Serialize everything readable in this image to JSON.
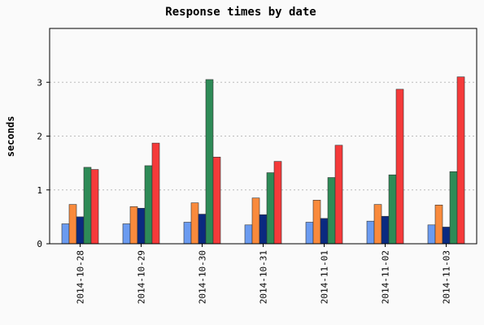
{
  "chart_data": {
    "type": "bar",
    "title": "Response times by date",
    "xlabel": "",
    "ylabel": "seconds",
    "categories": [
      "2014-10-28",
      "2014-10-29",
      "2014-10-30",
      "2014-10-31",
      "2014-11-01",
      "2014-11-02",
      "2014-11-03"
    ],
    "ylim": [
      0,
      4
    ],
    "yticks": [
      0,
      1,
      2,
      3
    ],
    "grid": true,
    "legend": "none",
    "series": [
      {
        "color": "#6b9bf0",
        "values": [
          0.37,
          0.37,
          0.4,
          0.35,
          0.4,
          0.42,
          0.35
        ]
      },
      {
        "color": "#f98a3c",
        "values": [
          0.73,
          0.69,
          0.76,
          0.85,
          0.81,
          0.73,
          0.72
        ]
      },
      {
        "color": "#0a2a80",
        "values": [
          0.5,
          0.66,
          0.55,
          0.54,
          0.47,
          0.51,
          0.31
        ]
      },
      {
        "color": "#2e8b57",
        "values": [
          1.42,
          1.45,
          3.05,
          1.32,
          1.23,
          1.28,
          1.34
        ]
      },
      {
        "color": "#f53a3a",
        "values": [
          1.38,
          1.87,
          1.61,
          1.53,
          1.83,
          2.87,
          3.1
        ]
      }
    ]
  }
}
